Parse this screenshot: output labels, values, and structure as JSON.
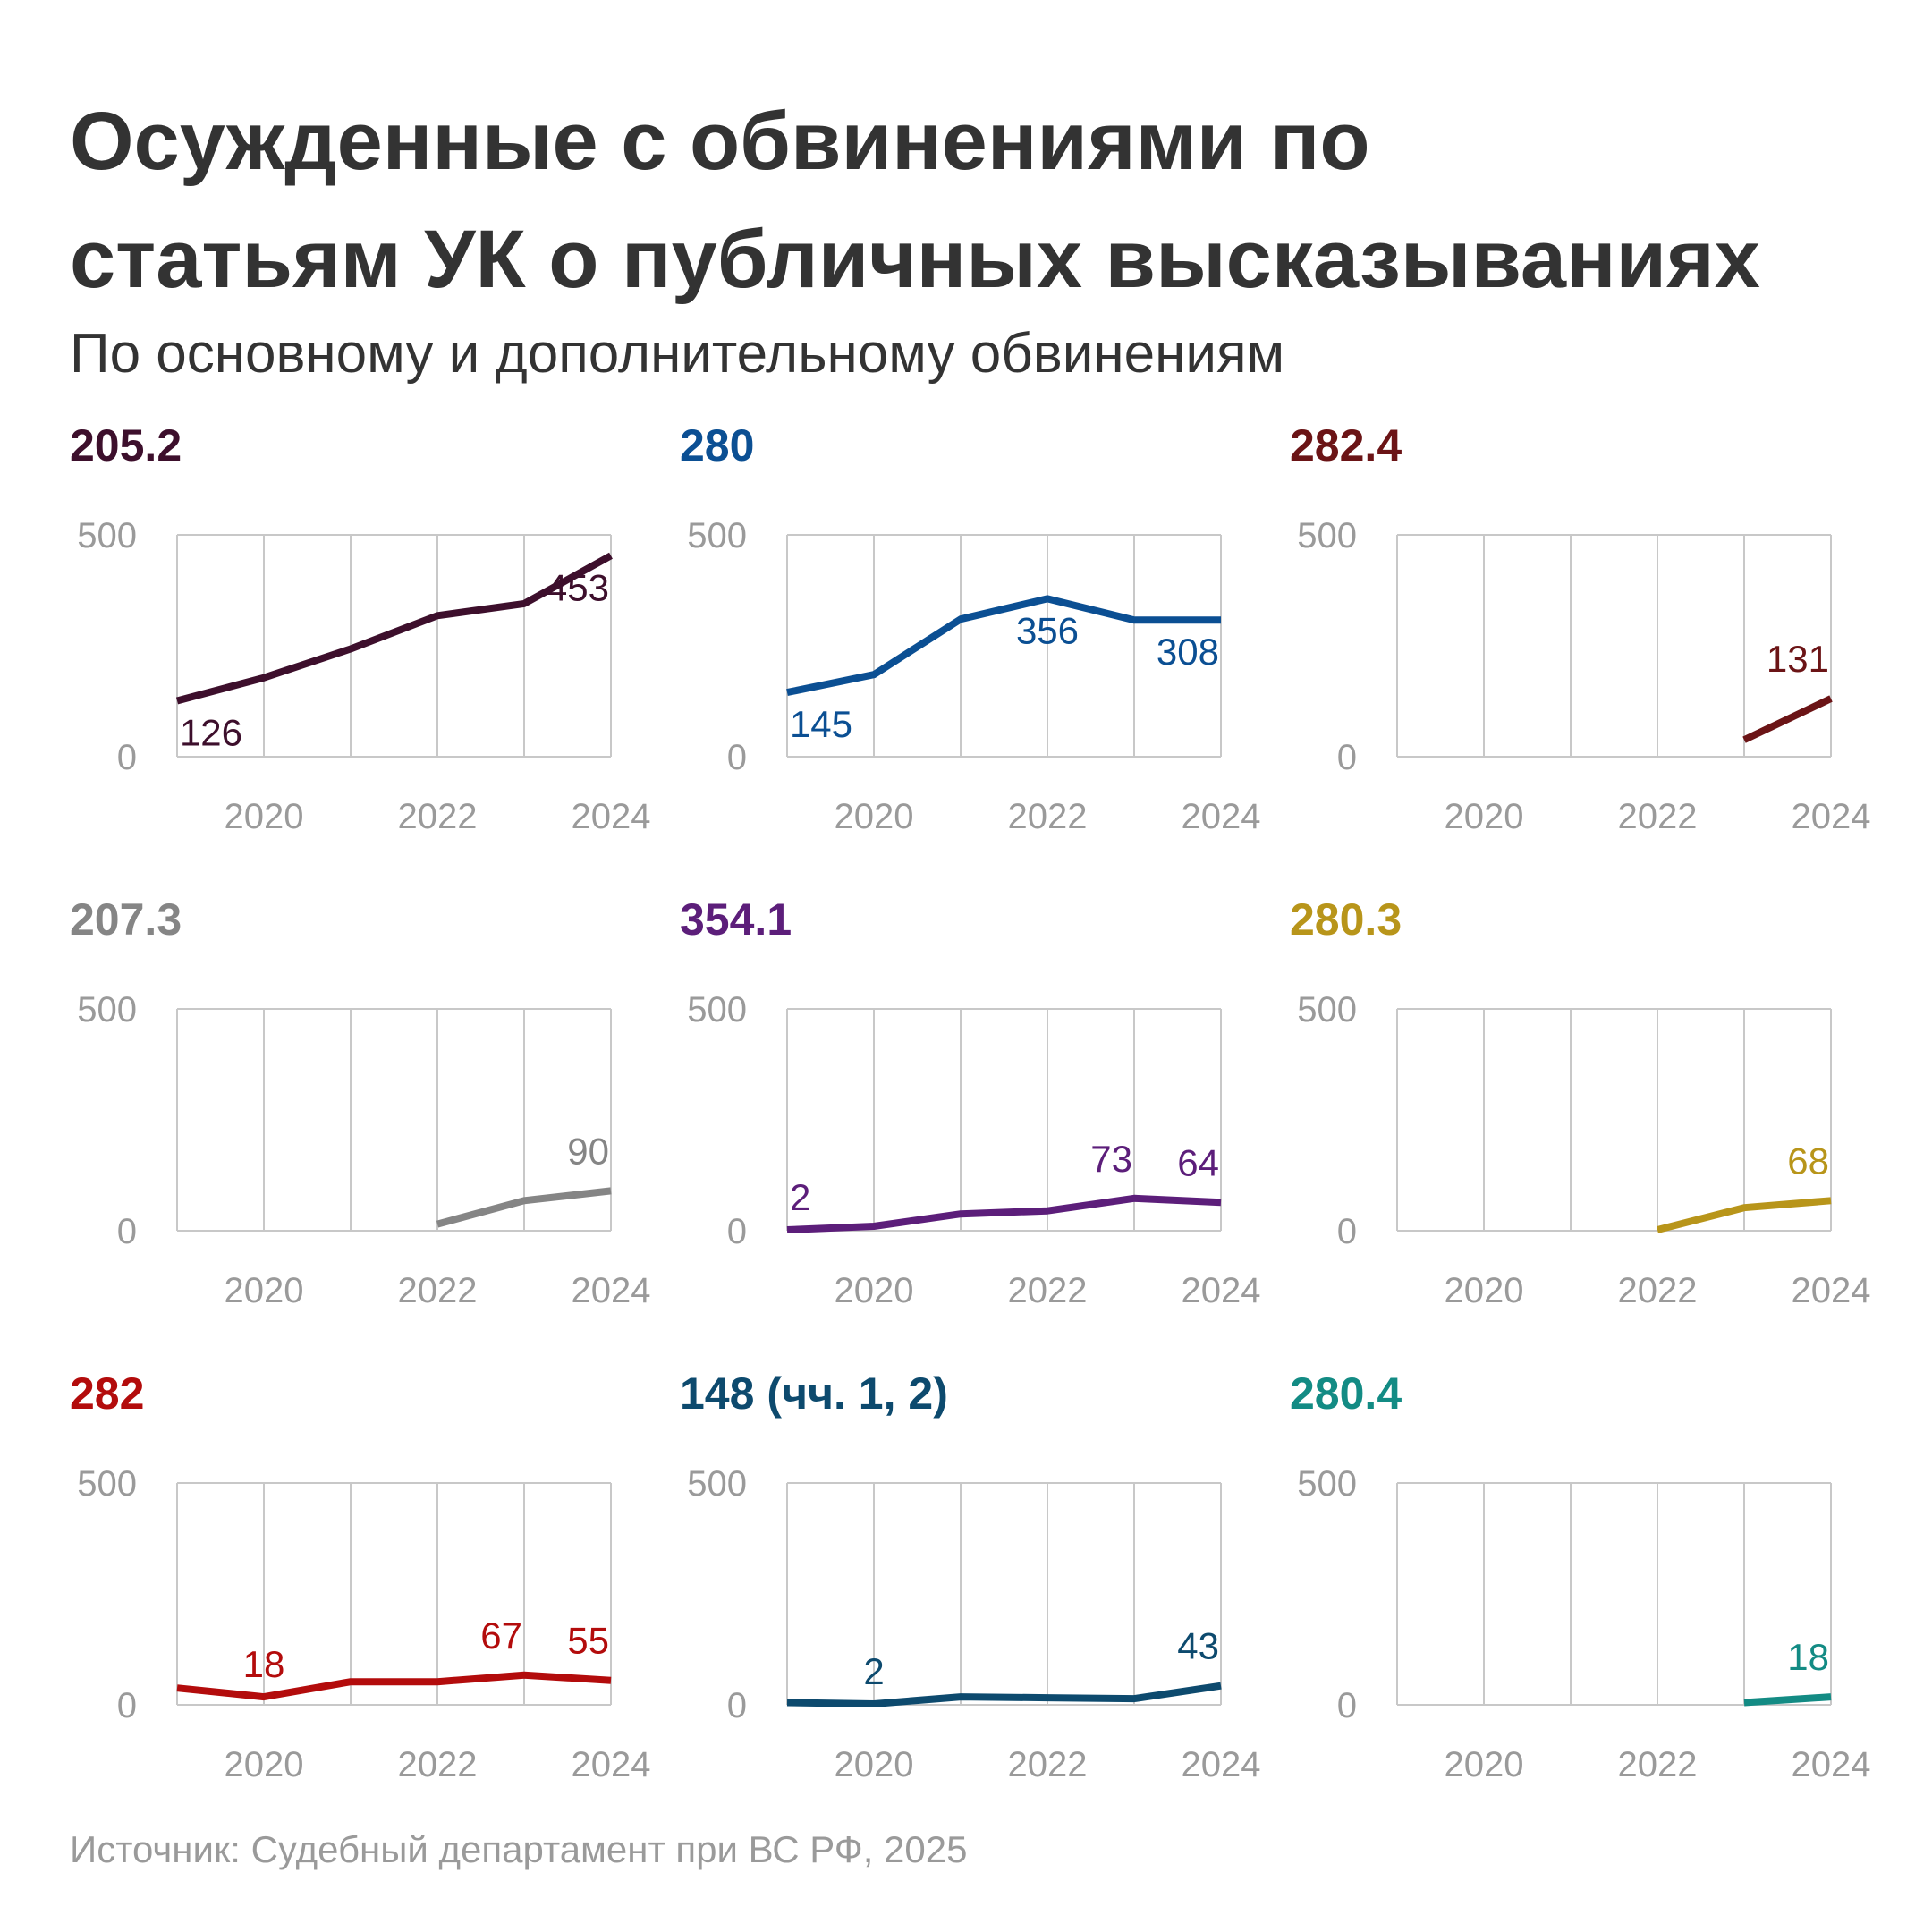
{
  "title_lines": [
    "Осужденные с обвинениями по",
    "статьям УК о публичных высказываниях"
  ],
  "subtitle": "По основному и дополнительному обвинениям",
  "source": "Источник: Судебный департамент при ВС РФ, 2025",
  "chart_data": [
    {
      "type": "line",
      "title": "205.2",
      "color": "#3d0f2c",
      "x": [
        2019,
        2020,
        2021,
        2022,
        2023,
        2024
      ],
      "values": [
        126,
        178,
        243,
        318,
        345,
        453
      ],
      "labels": [
        {
          "index": 0,
          "text": "126",
          "pos": "below"
        },
        {
          "index": 5,
          "text": "453",
          "pos": "below-left"
        }
      ],
      "ylim": [
        0,
        500
      ],
      "yticks": [
        "0",
        "500"
      ],
      "xticks": [
        "2020",
        "2022",
        "2024"
      ]
    },
    {
      "type": "line",
      "title": "280",
      "color": "#0b4f93",
      "x": [
        2019,
        2020,
        2021,
        2022,
        2023,
        2024
      ],
      "values": [
        145,
        185,
        310,
        356,
        308,
        308
      ],
      "labels": [
        {
          "index": 0,
          "text": "145",
          "pos": "below"
        },
        {
          "index": 3,
          "text": "356",
          "pos": "below"
        },
        {
          "index": 5,
          "text": "308",
          "pos": "below-left"
        }
      ],
      "ylim": [
        0,
        500
      ],
      "yticks": [
        "0",
        "500"
      ],
      "xticks": [
        "2020",
        "2022",
        "2024"
      ]
    },
    {
      "type": "line",
      "title": "282.4",
      "color": "#6b1416",
      "x": [
        2023,
        2024
      ],
      "values": [
        38,
        131
      ],
      "labels": [
        {
          "index": 1,
          "text": "131",
          "pos": "above-left"
        }
      ],
      "ylim": [
        0,
        500
      ],
      "yticks": [
        "0",
        "500"
      ],
      "xticks": [
        "2020",
        "2022",
        "2024"
      ]
    },
    {
      "type": "line",
      "title": "207.3",
      "color": "#858585",
      "x": [
        2022,
        2023,
        2024
      ],
      "values": [
        15,
        68,
        90
      ],
      "labels": [
        {
          "index": 2,
          "text": "90",
          "pos": "above-left"
        }
      ],
      "ylim": [
        0,
        500
      ],
      "yticks": [
        "0",
        "500"
      ],
      "xticks": [
        "2020",
        "2022",
        "2024"
      ]
    },
    {
      "type": "line",
      "title": "354.1",
      "color": "#5c1e7a",
      "x": [
        2019,
        2020,
        2021,
        2022,
        2023,
        2024
      ],
      "values": [
        2,
        10,
        38,
        45,
        73,
        64
      ],
      "labels": [
        {
          "index": 0,
          "text": "2",
          "pos": "above-right"
        },
        {
          "index": 4,
          "text": "73",
          "pos": "above-left"
        },
        {
          "index": 5,
          "text": "64",
          "pos": "above-left"
        }
      ],
      "ylim": [
        0,
        500
      ],
      "yticks": [
        "0",
        "500"
      ],
      "xticks": [
        "2020",
        "2022",
        "2024"
      ]
    },
    {
      "type": "line",
      "title": "280.3",
      "color": "#b8951a",
      "x": [
        2022,
        2023,
        2024
      ],
      "values": [
        2,
        52,
        68
      ],
      "labels": [
        {
          "index": 2,
          "text": "68",
          "pos": "above-left"
        }
      ],
      "ylim": [
        0,
        500
      ],
      "yticks": [
        "0",
        "500"
      ],
      "xticks": [
        "2020",
        "2022",
        "2024"
      ]
    },
    {
      "type": "line",
      "title": "282",
      "color": "#b30c0c",
      "x": [
        2019,
        2020,
        2021,
        2022,
        2023,
        2024
      ],
      "values": [
        38,
        18,
        52,
        52,
        67,
        55
      ],
      "labels": [
        {
          "index": 1,
          "text": "18",
          "pos": "above"
        },
        {
          "index": 4,
          "text": "67",
          "pos": "above-left"
        },
        {
          "index": 5,
          "text": "55",
          "pos": "above-left"
        }
      ],
      "ylim": [
        0,
        500
      ],
      "yticks": [
        "0",
        "500"
      ],
      "xticks": [
        "2020",
        "2022",
        "2024"
      ]
    },
    {
      "type": "line",
      "title": "148 (чч. 1, 2)",
      "color": "#0d4a6e",
      "x": [
        2019,
        2020,
        2021,
        2022,
        2023,
        2024
      ],
      "values": [
        5,
        2,
        18,
        16,
        14,
        43
      ],
      "labels": [
        {
          "index": 1,
          "text": "2",
          "pos": "above"
        },
        {
          "index": 5,
          "text": "43",
          "pos": "above-left"
        }
      ],
      "ylim": [
        0,
        500
      ],
      "yticks": [
        "0",
        "500"
      ],
      "xticks": [
        "2020",
        "2022",
        "2024"
      ]
    },
    {
      "type": "line",
      "title": "280.4",
      "color": "#138b84",
      "x": [
        2023,
        2024
      ],
      "values": [
        5,
        18
      ],
      "labels": [
        {
          "index": 1,
          "text": "18",
          "pos": "above-left"
        }
      ],
      "ylim": [
        0,
        500
      ],
      "yticks": [
        "0",
        "500"
      ],
      "xticks": [
        "2020",
        "2022",
        "2024"
      ]
    }
  ]
}
